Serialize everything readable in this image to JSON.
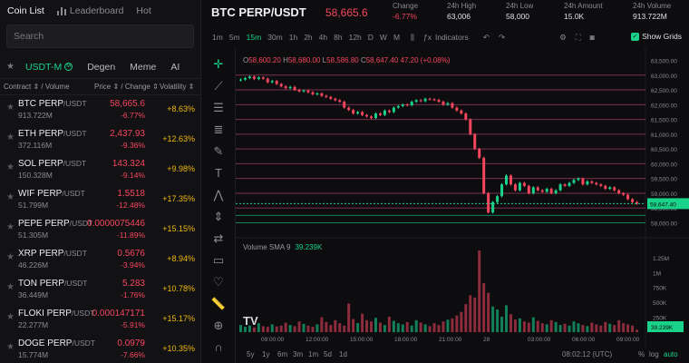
{
  "left_panel": {
    "tabs": [
      "Coin List",
      "Leaderboard",
      "Hot"
    ],
    "search_placeholder": "Search",
    "categories": [
      "USDT-M",
      "Degen",
      "Meme",
      "AI"
    ],
    "columns": {
      "contract": "Contract ⇕ / Volume",
      "price": "Price ⇕ / Change ⇕",
      "volatility": "Volatility ⇕"
    },
    "coins": [
      {
        "symbol": "BTC PERP",
        "quote": "/USDT",
        "volume": "913.722M",
        "price": "58,665.6",
        "change": "-6.77%",
        "volatility": "+8.63%"
      },
      {
        "symbol": "ETH PERP",
        "quote": "/USDT",
        "volume": "372.116M",
        "price": "2,437.93",
        "change": "-9.36%",
        "volatility": "+12.63%"
      },
      {
        "symbol": "SOL PERP",
        "quote": "/USDT",
        "volume": "150.328M",
        "price": "143.324",
        "change": "-9.14%",
        "volatility": "+9.98%"
      },
      {
        "symbol": "WIF PERP",
        "quote": "/USDT",
        "volume": "51.799M",
        "price": "1.5518",
        "change": "-12.48%",
        "volatility": "+17.35%"
      },
      {
        "symbol": "PEPE PERP",
        "quote": "/USDT",
        "volume": "51.305M",
        "price": "0.0000075446",
        "change": "-11.89%",
        "volatility": "+15.15%"
      },
      {
        "symbol": "XRP PERP",
        "quote": "/USDT",
        "volume": "46.226M",
        "price": "0.5676",
        "change": "-3.94%",
        "volatility": "+8.94%"
      },
      {
        "symbol": "TON PERP",
        "quote": "/USDT",
        "volume": "36.449M",
        "price": "5.283",
        "change": "-1.76%",
        "volatility": "+10.78%"
      },
      {
        "symbol": "FLOKI PERP",
        "quote": "/USDT",
        "volume": "22.277M",
        "price": "0.000147171",
        "change": "-5.91%",
        "volatility": "+15.17%"
      },
      {
        "symbol": "DOGE PERP",
        "quote": "/USDT",
        "volume": "15.774M",
        "price": "0.0979",
        "change": "-7.66%",
        "volatility": "+10.35%"
      }
    ]
  },
  "header": {
    "pair": "BTC PERP/USDT",
    "last_price": "58,665.6",
    "stats": [
      {
        "label": "Change",
        "value": "-6.77%",
        "negative": true
      },
      {
        "label": "24h High",
        "value": "63,006"
      },
      {
        "label": "24h Low",
        "value": "58,000"
      },
      {
        "label": "24h Amount",
        "value": "15.0K"
      },
      {
        "label": "24h Volume",
        "value": "913.722M"
      }
    ]
  },
  "toolbar": {
    "timeframes": [
      "1m",
      "5m",
      "15m",
      "30m",
      "1h",
      "2h",
      "4h",
      "8h",
      "12h",
      "D",
      "W",
      "M"
    ],
    "active_timeframe": "15m",
    "indicators_label": "Indicators",
    "show_grids_label": "Show Grids",
    "show_grids_checked": true
  },
  "ohlc": {
    "open_label": "O",
    "open": "58,600.20",
    "high_label": "H",
    "high": "58,680.00",
    "low_label": "L",
    "low": "58,586.80",
    "close_label": "C",
    "close": "58,647.40",
    "change": "47.20 (+0.08%)"
  },
  "volume": {
    "label": "Volume SMA 9",
    "value": "39.239K"
  },
  "bottom": {
    "ranges": [
      "5y",
      "1y",
      "6m",
      "3m",
      "1m",
      "5d",
      "1d"
    ],
    "clock": "08:02:12 (UTC)",
    "percent_label": "%",
    "log_label": "log",
    "auto_label": "auto"
  },
  "chart_data": {
    "type": "candlestick",
    "title": "",
    "price_axis": {
      "ticks": [
        63500,
        63000,
        62500,
        62000,
        61500,
        61000,
        60500,
        60000,
        59500,
        59000,
        58500,
        58000
      ],
      "tick_labels": [
        "63,500.00",
        "63,000.00",
        "62,500.00",
        "62,000.00",
        "61,500.00",
        "61,000.00",
        "60,500.00",
        "60,000.00",
        "59,500.00",
        "59,000.00",
        "58,500.00",
        "58,000.00"
      ],
      "range": [
        57800,
        63700
      ],
      "last_price": 58647.4,
      "last_price_label": "58,647.40"
    },
    "time_axis": {
      "tick_labels": [
        "09:00:00",
        "12:00:00",
        "15:00:00",
        "18:00:00",
        "21:00:00",
        "28",
        "03:00:00",
        "06:00:00",
        "09:00:00"
      ]
    },
    "grid_levels": [
      63000,
      62500,
      62000,
      61500,
      61000,
      60500,
      60000,
      59500,
      59000,
      58500
    ],
    "closes": [
      62850,
      62900,
      62950,
      62870,
      62920,
      62880,
      62760,
      62800,
      62700,
      62620,
      62560,
      62600,
      62500,
      62450,
      62480,
      62420,
      62350,
      62380,
      62300,
      62260,
      62200,
      62150,
      62100,
      61900,
      61820,
      61700,
      61750,
      61650,
      61600,
      61550,
      61700,
      61650,
      61800,
      61750,
      61900,
      61950,
      62000,
      61980,
      62100,
      62150,
      62120,
      62200,
      62180,
      62160,
      62100,
      62000,
      62050,
      61900,
      61800,
      61700,
      61500,
      61000,
      60500,
      60200,
      59000,
      58350,
      58700,
      58900,
      59300,
      59600,
      59300,
      59100,
      59350,
      59250,
      59000,
      59200,
      59100,
      59050,
      59150,
      59000,
      59100,
      59300,
      59250,
      59350,
      59450,
      59500,
      59300,
      59400,
      59350,
      59300,
      59250,
      59150,
      59200,
      59100,
      59000,
      58950,
      58800,
      58700,
      58650
    ],
    "volume_axis": {
      "tick_labels": [
        "1.25M",
        "1M",
        "750K",
        "500K",
        "250K"
      ],
      "ticks": [
        1250000,
        1000000,
        750000,
        500000,
        250000
      ],
      "range": [
        0,
        1400000
      ],
      "current_label": "39.239K"
    },
    "volumes": [
      120000,
      90000,
      110000,
      80000,
      150000,
      100000,
      90000,
      130000,
      95000,
      110000,
      160000,
      120000,
      100000,
      180000,
      140000,
      110000,
      90000,
      130000,
      250000,
      170000,
      120000,
      200000,
      150000,
      110000,
      480000,
      220000,
      150000,
      310000,
      200000,
      180000,
      240000,
      160000,
      120000,
      260000,
      190000,
      150000,
      130000,
      170000,
      110000,
      200000,
      160000,
      130000,
      100000,
      150000,
      120000,
      180000,
      210000,
      230000,
      280000,
      340000,
      470000,
      620000,
      580000,
      1370000,
      820000,
      660000,
      430000,
      380000,
      260000,
      450000,
      300000,
      210000,
      230000,
      180000,
      160000,
      250000,
      190000,
      150000,
      130000,
      200000,
      170000,
      120000,
      140000,
      110000,
      180000,
      150000,
      120000,
      100000,
      160000,
      130000,
      110000,
      170000,
      140000,
      120000,
      200000,
      150000,
      130000,
      110000,
      39239
    ]
  }
}
